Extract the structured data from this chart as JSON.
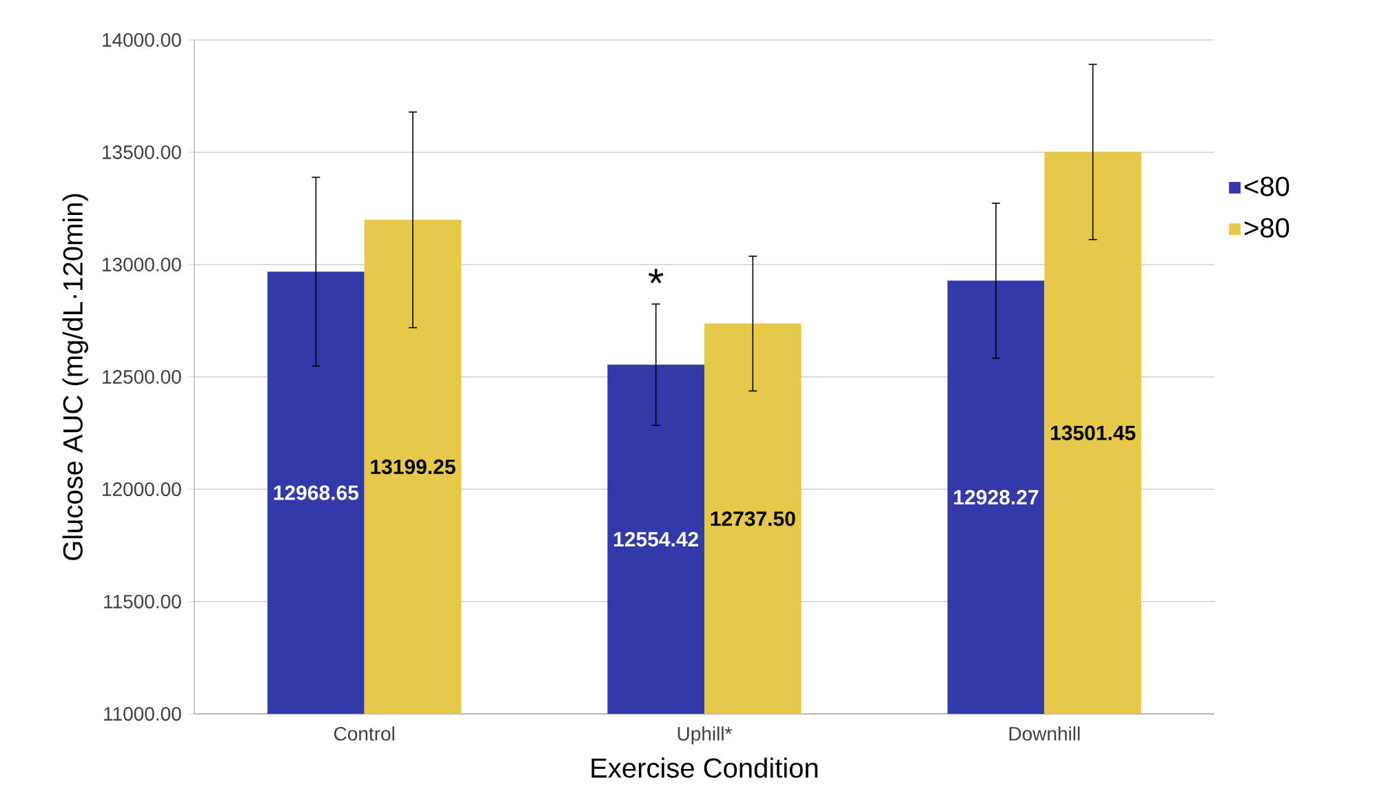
{
  "chart_data": {
    "type": "bar",
    "xlabel": "Exercise Condition",
    "ylabel": "Glucose AUC (mg/dL·120min)",
    "categories": [
      "Control",
      "Uphill*",
      "Downhill"
    ],
    "series": [
      {
        "name": "<80",
        "color": "#3339a8",
        "values": [
          12968.65,
          12554.42,
          12928.27
        ],
        "value_labels": [
          "12968.65",
          "12554.42",
          "12928.27"
        ],
        "errors": [
          420,
          270,
          345
        ]
      },
      {
        "name": ">80",
        "color": "#e6c84a",
        "values": [
          13199.25,
          12737.5,
          13501.45
        ],
        "value_labels": [
          "13199.25",
          "12737.50",
          "13501.45"
        ],
        "errors": [
          480,
          300,
          390
        ]
      }
    ],
    "ylim": [
      11000,
      14000
    ],
    "yticks": [
      {
        "value": 11000,
        "label": "11000.00"
      },
      {
        "value": 11500,
        "label": "11500.00"
      },
      {
        "value": 12000,
        "label": "12000.00"
      },
      {
        "value": 12500,
        "label": "12500.00"
      },
      {
        "value": 13000,
        "label": "13000.00"
      },
      {
        "value": 13500,
        "label": "13500.00"
      },
      {
        "value": 14000,
        "label": "14000.00"
      }
    ],
    "annotations": [
      "*"
    ],
    "grid": "y",
    "legend": "right"
  }
}
